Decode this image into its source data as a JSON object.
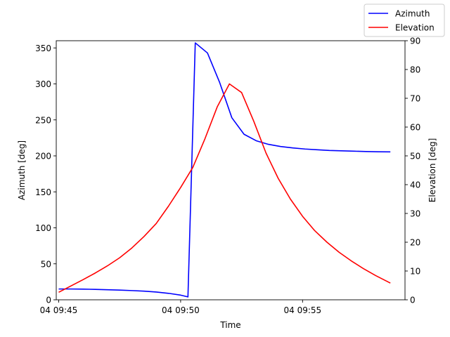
{
  "chart_data": {
    "type": "line",
    "title": "",
    "xlabel": "Time",
    "ylabel_left": "Azimuth [deg]",
    "ylabel_right": "Elevation [deg]",
    "legend_position": "top-right",
    "grid": false,
    "x_ticks": [
      "04 09:45",
      "04 09:50",
      "04 09:55"
    ],
    "x_tick_minutes": [
      0,
      5,
      10
    ],
    "xlim_minutes": [
      -0.1,
      14.2
    ],
    "y_left_ticks": [
      0,
      50,
      100,
      150,
      200,
      250,
      300,
      350
    ],
    "ylim_left": [
      0,
      360
    ],
    "y_right_ticks": [
      0,
      10,
      20,
      30,
      40,
      50,
      60,
      70,
      80,
      90
    ],
    "ylim_right": [
      0,
      90
    ],
    "series": [
      {
        "name": "Azimuth",
        "axis": "left",
        "color": "#0000ff",
        "x_minutes": [
          0,
          0.5,
          1,
          1.5,
          2,
          2.5,
          3,
          3.5,
          4,
          4.5,
          5,
          5.3,
          5.6,
          6.1,
          6.6,
          7.1,
          7.6,
          8.1,
          8.6,
          9.1,
          9.6,
          10.1,
          10.6,
          11.1,
          11.6,
          12.1,
          12.6,
          13.1,
          13.6
        ],
        "values": [
          15,
          15,
          14.8,
          14.5,
          14,
          13.5,
          12.8,
          12,
          10.8,
          9,
          6.5,
          4,
          357,
          343,
          302,
          253,
          230,
          221,
          216,
          213,
          211,
          209.5,
          208.5,
          207.5,
          207,
          206.5,
          206,
          205.7,
          205.5
        ]
      },
      {
        "name": "Elevation",
        "axis": "right",
        "color": "#ff0000",
        "x_minutes": [
          0,
          0.5,
          1,
          1.5,
          2,
          2.5,
          3,
          3.5,
          4,
          4.5,
          5,
          5.5,
          6,
          6.5,
          7,
          7.5,
          8,
          8.5,
          9,
          9.5,
          10,
          10.5,
          11,
          11.5,
          12,
          12.5,
          13,
          13.6
        ],
        "values": [
          2.6,
          4.8,
          7,
          9.3,
          11.8,
          14.6,
          18,
          22,
          26.5,
          32.5,
          39,
          46,
          56,
          67,
          75,
          72,
          62,
          51,
          42.2,
          35,
          29,
          24,
          20,
          16.5,
          13.5,
          10.8,
          8.4,
          5.8
        ]
      }
    ]
  }
}
